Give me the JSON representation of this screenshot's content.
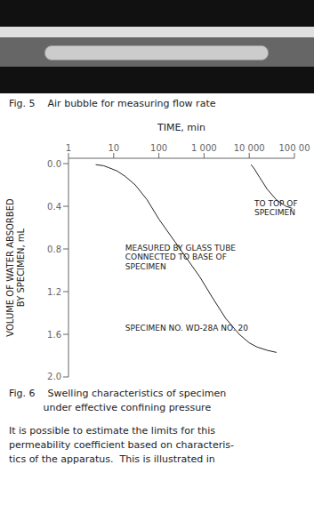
{
  "chart_data": {
    "type": "line",
    "title": "Fig. 6    Swelling characteristics of specimen",
    "subtitle": "           under effective confining pressure",
    "xlabel": "TIME, min",
    "ylabel": "VOLUME OF WATER ABSORBED\nBY SPECIMEN, mL",
    "log": "x",
    "grid": false,
    "xlim": [
      1,
      100000
    ],
    "xticks": [
      1,
      10,
      100,
      {
        "value": 1000,
        "label": "1 000"
      },
      {
        "value": 10000,
        "label": "10 000"
      },
      {
        "value": 100000,
        "label": "100 00"
      }
    ],
    "ylim": [
      2.0,
      -0.05
    ],
    "yticks": [
      {
        "value": 0.0,
        "label": "0.0"
      },
      0.4,
      0.8,
      1.2,
      1.6,
      {
        "value": 2.0,
        "label": "2.0"
      }
    ],
    "series": [
      {
        "color": "#222222",
        "x": [
          4,
          6,
          8,
          12,
          18,
          30,
          55,
          100,
          200,
          400,
          800,
          1500,
          3000,
          6000,
          10000,
          15000,
          25000,
          40000
        ],
        "values": [
          0.01,
          0.02,
          0.04,
          0.07,
          0.12,
          0.2,
          0.34,
          0.52,
          0.7,
          0.88,
          1.06,
          1.25,
          1.45,
          1.6,
          1.68,
          1.72,
          1.75,
          1.77
        ]
      },
      {
        "color": "#222222",
        "x": [
          11000,
          13000,
          17000,
          25000,
          40000,
          65000,
          90000
        ],
        "values": [
          0.01,
          0.05,
          0.13,
          0.24,
          0.34,
          0.4,
          0.42
        ]
      }
    ],
    "annotations": [
      {
        "text": "MEASURED BY GLASS TUBE\nCONNECTED TO BASE OF\nSPECIMEN",
        "x": 18,
        "y": 0.75
      },
      {
        "text": "TO TOP OF\nSPECIMEN",
        "x": 13000,
        "y": 0.33
      },
      {
        "text": "SPECIMEN NO. WD-28A  NO. 20",
        "x": 18,
        "y": 1.5
      },
      {
        "text": "Fig. 5    Air bubble for measuring flow rate"
      },
      {
        "text": "It is possible to estimate the limits for this"
      },
      {
        "text": "permeability coefficient based on characteris-"
      },
      {
        "text": "tics of the apparatus.  This is illustrated in"
      }
    ]
  }
}
